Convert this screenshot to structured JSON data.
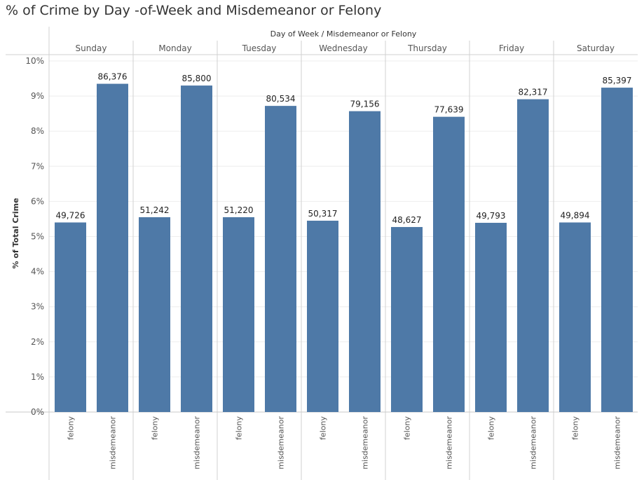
{
  "title": "% of Crime by Day -of-Week and Misdemeanor or Felony",
  "chart_data": {
    "type": "bar",
    "title": "% of Crime by Day -of-Week and Misdemeanor or Felony",
    "column_header": "Day of Week  /  Misdemeanor or Felony",
    "ylabel": "% of Total Crime",
    "ylim": [
      0,
      10
    ],
    "yticks": [
      "0%",
      "1%",
      "2%",
      "3%",
      "4%",
      "5%",
      "6%",
      "7%",
      "8%",
      "9%",
      "10%"
    ],
    "grid": true,
    "bar_color": "#4e79a7",
    "days": [
      "Sunday",
      "Monday",
      "Tuesday",
      "Wednesday",
      "Thursday",
      "Friday",
      "Saturday"
    ],
    "categories": [
      "felony",
      "misdemeanor"
    ],
    "groups": [
      {
        "day": "Sunday",
        "bars": [
          {
            "category": "felony",
            "percent": 5.4,
            "label": "49,726"
          },
          {
            "category": "misdemeanor",
            "percent": 9.35,
            "label": "86,376"
          }
        ]
      },
      {
        "day": "Monday",
        "bars": [
          {
            "category": "felony",
            "percent": 5.55,
            "label": "51,242"
          },
          {
            "category": "misdemeanor",
            "percent": 9.3,
            "label": "85,800"
          }
        ]
      },
      {
        "day": "Tuesday",
        "bars": [
          {
            "category": "felony",
            "percent": 5.55,
            "label": "51,220"
          },
          {
            "category": "misdemeanor",
            "percent": 8.72,
            "label": "80,534"
          }
        ]
      },
      {
        "day": "Wednesday",
        "bars": [
          {
            "category": "felony",
            "percent": 5.45,
            "label": "50,317"
          },
          {
            "category": "misdemeanor",
            "percent": 8.57,
            "label": "79,156"
          }
        ]
      },
      {
        "day": "Thursday",
        "bars": [
          {
            "category": "felony",
            "percent": 5.27,
            "label": "48,627"
          },
          {
            "category": "misdemeanor",
            "percent": 8.41,
            "label": "77,639"
          }
        ]
      },
      {
        "day": "Friday",
        "bars": [
          {
            "category": "felony",
            "percent": 5.39,
            "label": "49,793"
          },
          {
            "category": "misdemeanor",
            "percent": 8.91,
            "label": "82,317"
          }
        ]
      },
      {
        "day": "Saturday",
        "bars": [
          {
            "category": "felony",
            "percent": 5.4,
            "label": "49,894"
          },
          {
            "category": "misdemeanor",
            "percent": 9.24,
            "label": "85,397"
          }
        ]
      }
    ]
  }
}
